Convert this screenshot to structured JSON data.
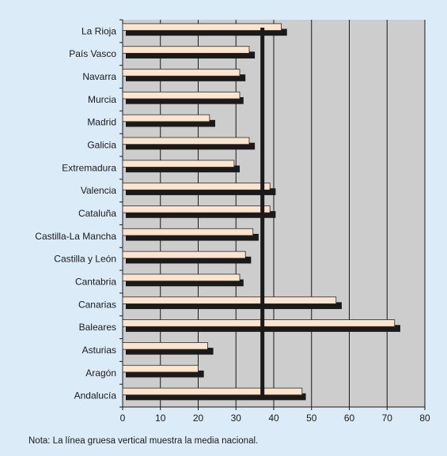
{
  "chart_data": {
    "type": "bar",
    "orientation": "horizontal",
    "categories": [
      "La Rioja",
      "País Vasco",
      "Navarra",
      "Murcia",
      "Madrid",
      "Galicia",
      "Extremadura",
      "Valencia",
      "Cataluña",
      "Castilla-La Mancha",
      "Castilla y León",
      "Cantabria",
      "Canarias",
      "Baleares",
      "Asturias",
      "Aragón",
      "Andalucía"
    ],
    "series": [
      {
        "values": [
          42,
          33.5,
          31,
          31,
          23,
          33.5,
          29.5,
          39,
          39,
          34.5,
          32.5,
          31,
          56.5,
          72,
          22.5,
          20,
          47.5
        ],
        "color": "#fde5cd"
      },
      {
        "values": [
          43.5,
          35,
          32.5,
          32,
          24.5,
          35,
          31,
          40.5,
          40.5,
          36,
          34,
          32,
          58,
          73.5,
          24,
          21.5,
          48.5
        ],
        "color": "#1a1a1a"
      }
    ],
    "xlim": [
      0,
      80
    ],
    "xticks": [
      0,
      10,
      20,
      30,
      40,
      50,
      60,
      70,
      80
    ],
    "reference_line": {
      "value": 37,
      "style": "thick vertical"
    },
    "grid": "vertical",
    "legend": "none",
    "note": "Nota: La línea gruesa vertical muestra la media nacional.",
    "colors": {
      "frame_background": "#dcebf8",
      "plot_background": "#cdcdcd",
      "grid": "#1a1a1a"
    }
  }
}
